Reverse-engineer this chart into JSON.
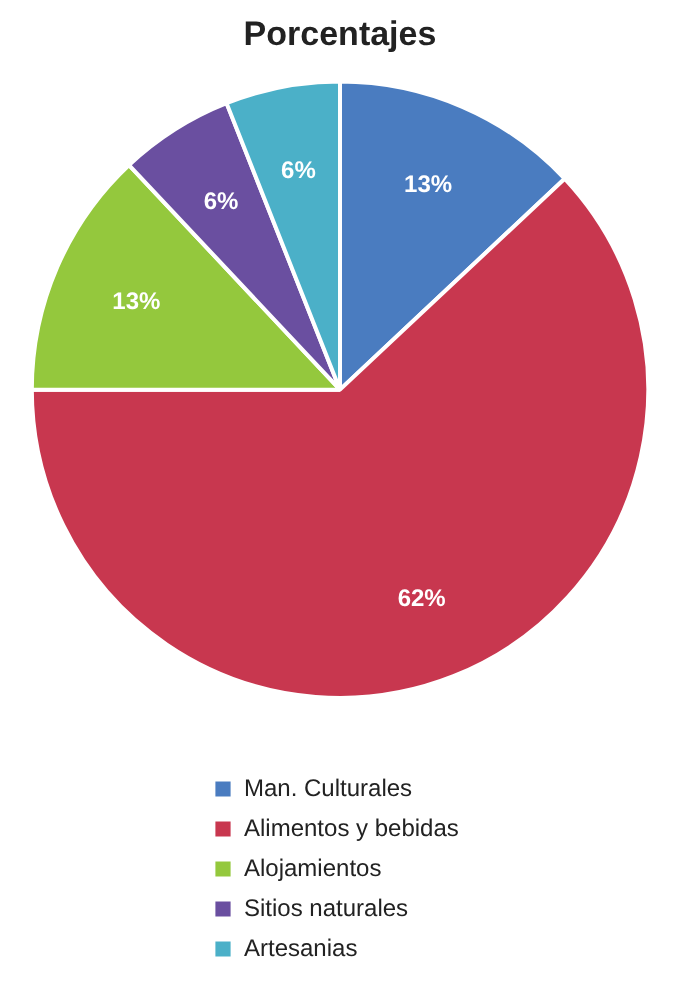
{
  "chart_data": {
    "type": "pie",
    "title": "Porcentajes",
    "categories": [
      "Man. Culturales",
      "Alimentos y bebidas",
      "Alojamientos",
      "Sitios naturales",
      "Artesanias"
    ],
    "values": [
      13,
      62,
      13,
      6,
      6
    ],
    "value_labels": [
      "13%",
      "62%",
      "13%",
      "6%",
      "6%"
    ],
    "colors": [
      "#4a7cc0",
      "#c8374f",
      "#94c83d",
      "#6a4fa0",
      "#4bb0c8"
    ],
    "legend": "bottom"
  }
}
